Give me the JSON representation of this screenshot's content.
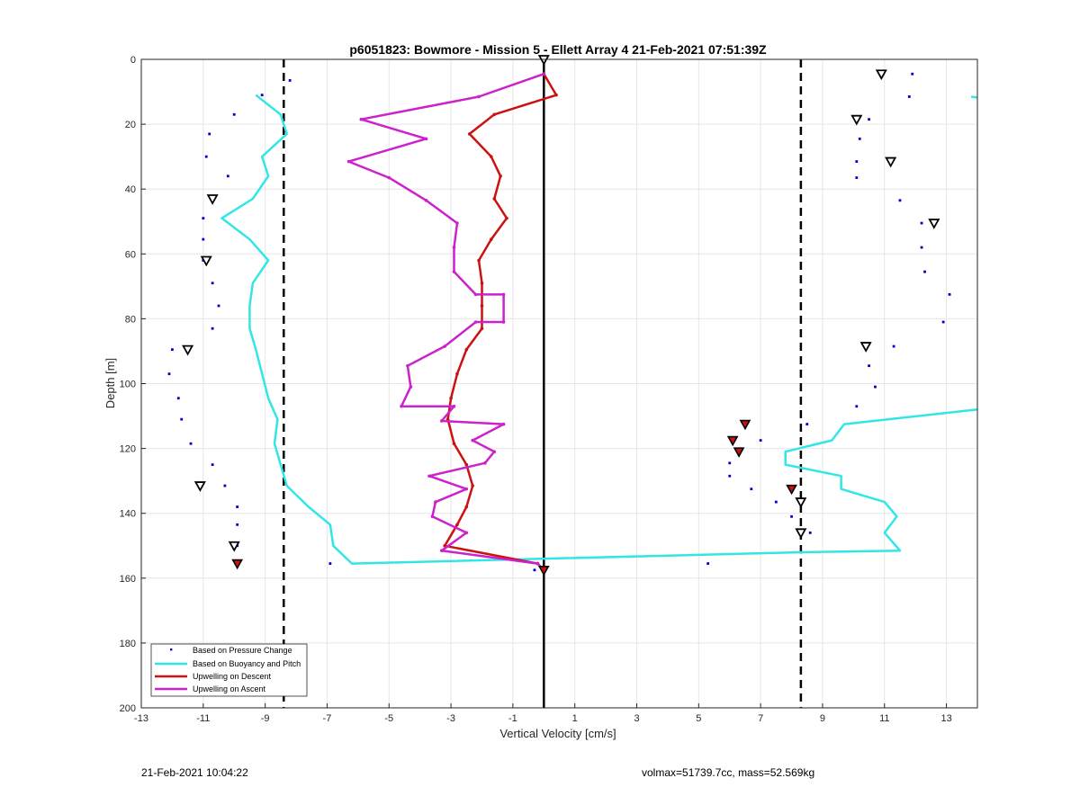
{
  "chart_data": {
    "type": "scatter",
    "title": "p6051823: Bowmore - Mission 5 - Ellett Array 4 21-Feb-2021 07:51:39Z",
    "xlabel": "Vertical Velocity [cm/s]",
    "ylabel": "Depth [m]",
    "xlim": [
      -13,
      14
    ],
    "ylim": [
      200,
      0
    ],
    "y_reversed": true,
    "xticks": [
      -13,
      -11,
      -9,
      -7,
      -5,
      -3,
      -1,
      1,
      3,
      5,
      7,
      9,
      11,
      13
    ],
    "yticks": [
      0,
      20,
      40,
      60,
      80,
      100,
      120,
      140,
      160,
      180,
      200
    ],
    "grid": true,
    "legend_position": "bottom-left",
    "reference_lines": {
      "zero_line_x": 0,
      "dashed_lines_x": [
        -8.4,
        8.3
      ]
    },
    "series": [
      {
        "name": "Based on Pressure Change",
        "kind": "points",
        "color": "#0000cc",
        "points": [
          [
            -9.1,
            11
          ],
          [
            -8.2,
            6.5
          ],
          [
            -10.0,
            17
          ],
          [
            -10.8,
            23
          ],
          [
            -10.9,
            30
          ],
          [
            -10.2,
            36
          ],
          [
            -11.0,
            49
          ],
          [
            -11.0,
            55.5
          ],
          [
            -11.0,
            62
          ],
          [
            -10.7,
            69
          ],
          [
            -10.5,
            76
          ],
          [
            -10.7,
            83
          ],
          [
            -12.0,
            89.5
          ],
          [
            -12.1,
            97
          ],
          [
            -11.8,
            104.5
          ],
          [
            -11.7,
            111
          ],
          [
            -11.4,
            118.5
          ],
          [
            -10.7,
            125
          ],
          [
            -10.3,
            131.5
          ],
          [
            -9.9,
            138
          ],
          [
            -9.9,
            143.5
          ],
          [
            -9.9,
            150
          ],
          [
            -9.9,
            155.5
          ],
          [
            -6.9,
            155.5
          ],
          [
            -0.3,
            157.5
          ],
          [
            5.3,
            155.5
          ],
          [
            8.6,
            146
          ],
          [
            8.3,
            152
          ],
          [
            8.0,
            141
          ],
          [
            7.5,
            136.5
          ],
          [
            6.7,
            132.5
          ],
          [
            6.0,
            128.5
          ],
          [
            6.0,
            124.5
          ],
          [
            7.0,
            117.5
          ],
          [
            8.5,
            112.5
          ],
          [
            10.1,
            107
          ],
          [
            10.7,
            101
          ],
          [
            10.5,
            94.5
          ],
          [
            11.3,
            88.5
          ],
          [
            12.9,
            81
          ],
          [
            13.1,
            72.5
          ],
          [
            12.3,
            65.5
          ],
          [
            12.2,
            58
          ],
          [
            12.2,
            50.5
          ],
          [
            11.5,
            43.5
          ],
          [
            10.1,
            36.5
          ],
          [
            10.1,
            31.5
          ],
          [
            10.2,
            24.5
          ],
          [
            10.5,
            18.5
          ],
          [
            11.8,
            11.5
          ],
          [
            11.9,
            4.5
          ]
        ]
      },
      {
        "name": "Based on Buoyancy and Pitch",
        "kind": "line",
        "color": "#33e6e6",
        "points": [
          [
            -9.3,
            11
          ],
          [
            -8.5,
            17
          ],
          [
            -8.3,
            23
          ],
          [
            -9.1,
            30
          ],
          [
            -8.9,
            36
          ],
          [
            -9.4,
            43
          ],
          [
            -10.4,
            49
          ],
          [
            -9.5,
            55.5
          ],
          [
            -8.9,
            62
          ],
          [
            -9.4,
            69
          ],
          [
            -9.5,
            76
          ],
          [
            -9.5,
            83
          ],
          [
            -9.3,
            89.5
          ],
          [
            -9.1,
            97
          ],
          [
            -8.9,
            104.5
          ],
          [
            -8.6,
            111
          ],
          [
            -8.7,
            118.5
          ],
          [
            -8.5,
            125
          ],
          [
            -8.3,
            131.5
          ],
          [
            -7.6,
            138
          ],
          [
            -6.9,
            143.5
          ],
          [
            -6.8,
            150
          ],
          [
            -6.2,
            155.5
          ],
          [
            8.3,
            152
          ],
          [
            11.5,
            151.5
          ],
          [
            11.0,
            146
          ],
          [
            11.4,
            141
          ],
          [
            11.0,
            136.5
          ],
          [
            9.6,
            132.5
          ],
          [
            9.6,
            128.5
          ],
          [
            7.8,
            125
          ],
          [
            7.8,
            121
          ],
          [
            9.3,
            117.5
          ],
          [
            9.7,
            112.5
          ],
          [
            14.0,
            108
          ]
        ],
        "extra_segments": [
          [
            [
              13.8,
              11.5
            ],
            [
              14.0,
              11.8
            ]
          ]
        ]
      },
      {
        "name": "Upwelling on Descent",
        "kind": "line-markers",
        "color": "#cc1111",
        "points": [
          [
            0.0,
            4.5
          ],
          [
            0.4,
            11
          ],
          [
            -1.6,
            17
          ],
          [
            -2.4,
            23
          ],
          [
            -1.7,
            30
          ],
          [
            -1.4,
            36
          ],
          [
            -1.6,
            43
          ],
          [
            -1.2,
            49
          ],
          [
            -1.7,
            55.5
          ],
          [
            -2.1,
            62
          ],
          [
            -2.0,
            69
          ],
          [
            -2.0,
            76
          ],
          [
            -2.0,
            83
          ],
          [
            -2.5,
            89.5
          ],
          [
            -2.8,
            97
          ],
          [
            -3.0,
            104.5
          ],
          [
            -3.1,
            111
          ],
          [
            -2.9,
            118.5
          ],
          [
            -2.5,
            125
          ],
          [
            -2.3,
            131.5
          ],
          [
            -2.5,
            138
          ],
          [
            -2.8,
            143.5
          ],
          [
            -3.2,
            150
          ],
          [
            -0.2,
            155.5
          ],
          [
            0.0,
            157.5
          ]
        ]
      },
      {
        "name": "Upwelling on Ascent",
        "kind": "line-markers",
        "color": "#cc22cc",
        "points": [
          [
            0.0,
            4.5
          ],
          [
            -2.1,
            11.5
          ],
          [
            -5.9,
            18.5
          ],
          [
            -3.8,
            24.5
          ],
          [
            -6.3,
            31.5
          ],
          [
            -5.0,
            36.5
          ],
          [
            -3.8,
            43.5
          ],
          [
            -2.8,
            50.5
          ],
          [
            -2.9,
            58
          ],
          [
            -2.9,
            65.5
          ],
          [
            -2.2,
            72.5
          ],
          [
            -1.3,
            72.5
          ],
          [
            -1.3,
            81
          ],
          [
            -2.2,
            81
          ],
          [
            -3.2,
            88.5
          ],
          [
            -4.4,
            94.5
          ],
          [
            -4.3,
            101
          ],
          [
            -4.6,
            107
          ],
          [
            -2.9,
            107
          ],
          [
            -3.3,
            111.5
          ],
          [
            -1.3,
            112.5
          ],
          [
            -2.3,
            117.5
          ],
          [
            -1.6,
            121
          ],
          [
            -1.9,
            124.5
          ],
          [
            -3.7,
            128.5
          ],
          [
            -2.5,
            132.5
          ],
          [
            -3.5,
            136.5
          ],
          [
            -3.6,
            141
          ],
          [
            -2.5,
            146
          ],
          [
            -3.3,
            151.5
          ],
          [
            -0.2,
            155.5
          ],
          [
            0.0,
            157.5
          ]
        ]
      }
    ],
    "triangle_markers": {
      "open": [
        [
          0.0,
          0
        ],
        [
          -10.7,
          43
        ],
        [
          -10.9,
          62
        ],
        [
          -11.5,
          89.5
        ],
        [
          -11.1,
          131.5
        ],
        [
          -10.0,
          150
        ],
        [
          10.9,
          4.5
        ],
        [
          10.1,
          18.5
        ],
        [
          11.2,
          31.5
        ],
        [
          12.6,
          50.5
        ],
        [
          10.4,
          88.5
        ],
        [
          8.3,
          136.5
        ],
        [
          8.3,
          146
        ]
      ],
      "filled": [
        [
          -9.9,
          155.5
        ],
        [
          6.5,
          112.5
        ],
        [
          6.1,
          117.5
        ],
        [
          6.3,
          121
        ],
        [
          8.0,
          132.5
        ],
        [
          0.0,
          157.5
        ]
      ]
    }
  },
  "footer": {
    "timestamp": "21-Feb-2021 10:04:22",
    "summary": "volmax=51739.7cc, mass=52.569kg"
  }
}
